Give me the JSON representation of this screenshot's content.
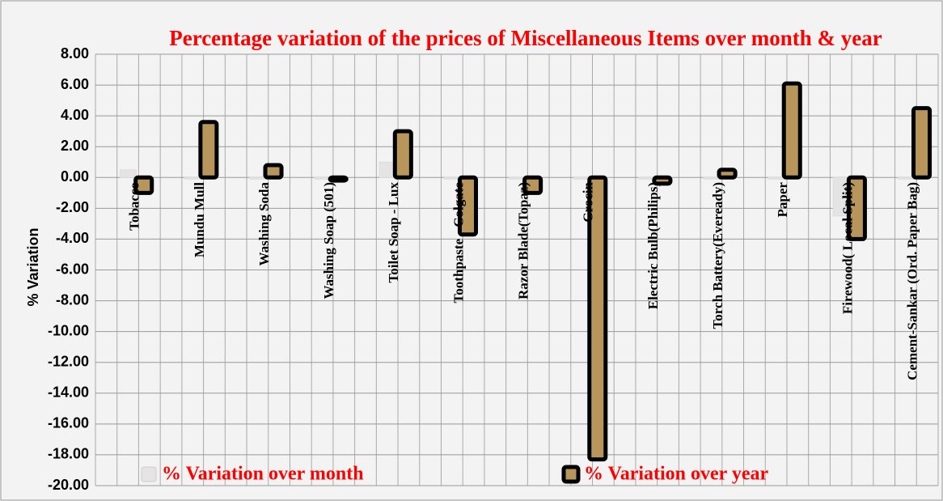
{
  "chart_data": {
    "type": "bar",
    "title": "Percentage variation of the prices of Miscellaneous Items over month & year",
    "y_label": "% Variation",
    "categories": [
      "Tobacco",
      "Mundu Mull",
      "Washing Soda",
      "Washing Soap (501)",
      "Toilet Soap - Lux",
      "Toothpaste - Colgate",
      "Razor Blade(Topaz)",
      "Crocin",
      "Electric Bulb(Philips)",
      "Torch Battery(Eveready)",
      "Paper",
      "Firewood( Local Split)",
      "Cement-Sankar (Ord. Paper Bag)"
    ],
    "series": [
      {
        "name": "% Variation over month",
        "color": "#e4e4e4",
        "values": [
          0.5,
          0,
          0,
          0,
          1.0,
          0,
          0,
          0,
          0,
          0,
          0,
          -2.5,
          0
        ]
      },
      {
        "name": "% Variation over year",
        "color": "#b8955a",
        "values": [
          -1.0,
          3.6,
          0.8,
          -0.2,
          3.0,
          -3.7,
          -1.0,
          -18.3,
          -0.4,
          0.5,
          6.1,
          -4.0,
          4.5
        ]
      }
    ],
    "ylim": [
      -20,
      8
    ],
    "yticks": [
      {
        "value": -20,
        "label": "-20.00"
      },
      {
        "value": -18,
        "label": "-18.00"
      },
      {
        "value": -16,
        "label": "-16.00"
      },
      {
        "value": -14,
        "label": "-14.00"
      },
      {
        "value": -12,
        "label": "-12.00"
      },
      {
        "value": -10,
        "label": "-10.00"
      },
      {
        "value": -8,
        "label": "-8.00"
      },
      {
        "value": -6,
        "label": "-6.00"
      },
      {
        "value": -4,
        "label": "-4.00"
      },
      {
        "value": -2,
        "label": "-2.00"
      },
      {
        "value": 0,
        "label": "0.00"
      },
      {
        "value": 2,
        "label": "2.00"
      },
      {
        "value": 4,
        "label": "4.00"
      },
      {
        "value": 6,
        "label": "6.00"
      },
      {
        "value": 8,
        "label": "8.00"
      }
    ],
    "grid": true,
    "legend": "bottom"
  }
}
